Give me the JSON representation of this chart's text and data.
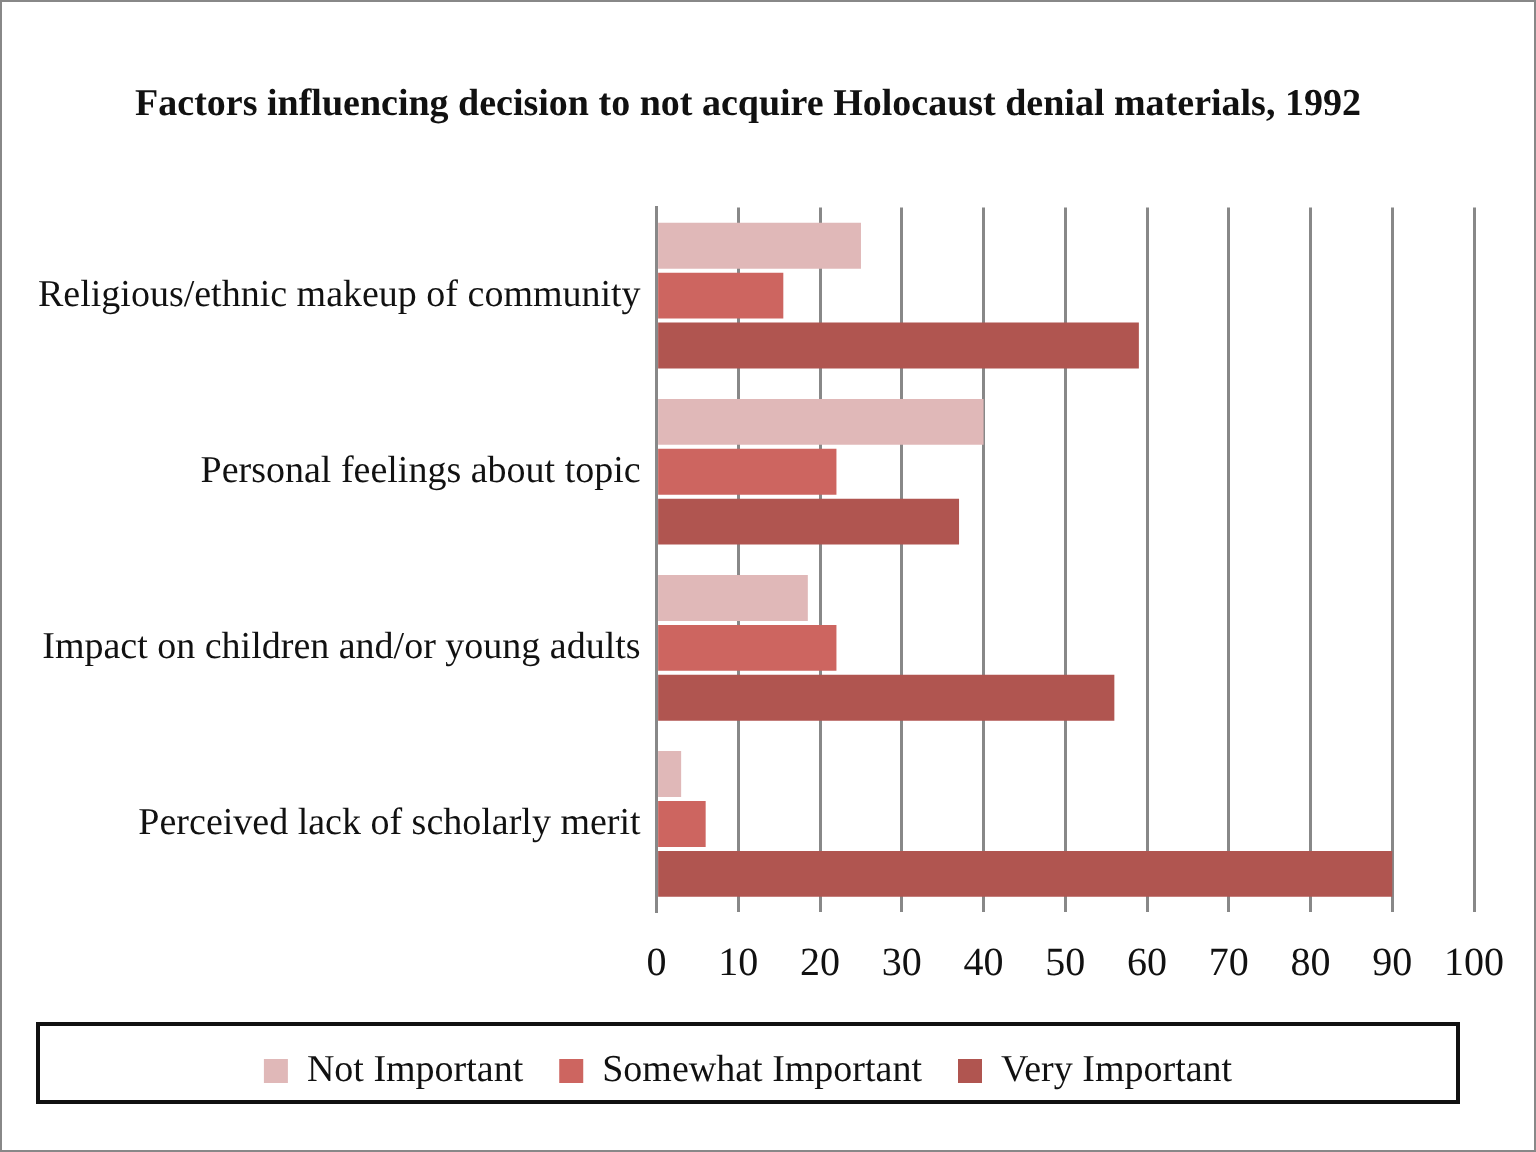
{
  "chart_data": {
    "type": "bar",
    "orientation": "horizontal",
    "title": "Factors influencing decision to not acquire Holocaust denial materials, 1992",
    "categories": [
      "Religious/ethnic makeup of community",
      "Personal feelings about topic",
      "Impact on children and/or young adults",
      "Perceived lack of scholarly merit"
    ],
    "series": [
      {
        "name": "Not Important",
        "color": "#e0b8b8",
        "values": [
          25,
          40,
          18.5,
          3
        ]
      },
      {
        "name": "Somewhat Important",
        "color": "#cd6560",
        "values": [
          15.5,
          22,
          22,
          6
        ]
      },
      {
        "name": "Very Important",
        "color": "#b05550",
        "values": [
          59,
          37,
          56,
          90
        ]
      }
    ],
    "xlim": [
      0,
      100
    ],
    "xticks": [
      0,
      10,
      20,
      30,
      40,
      50,
      60,
      70,
      80,
      90,
      100
    ],
    "grid": "x",
    "legend": "bottom"
  }
}
